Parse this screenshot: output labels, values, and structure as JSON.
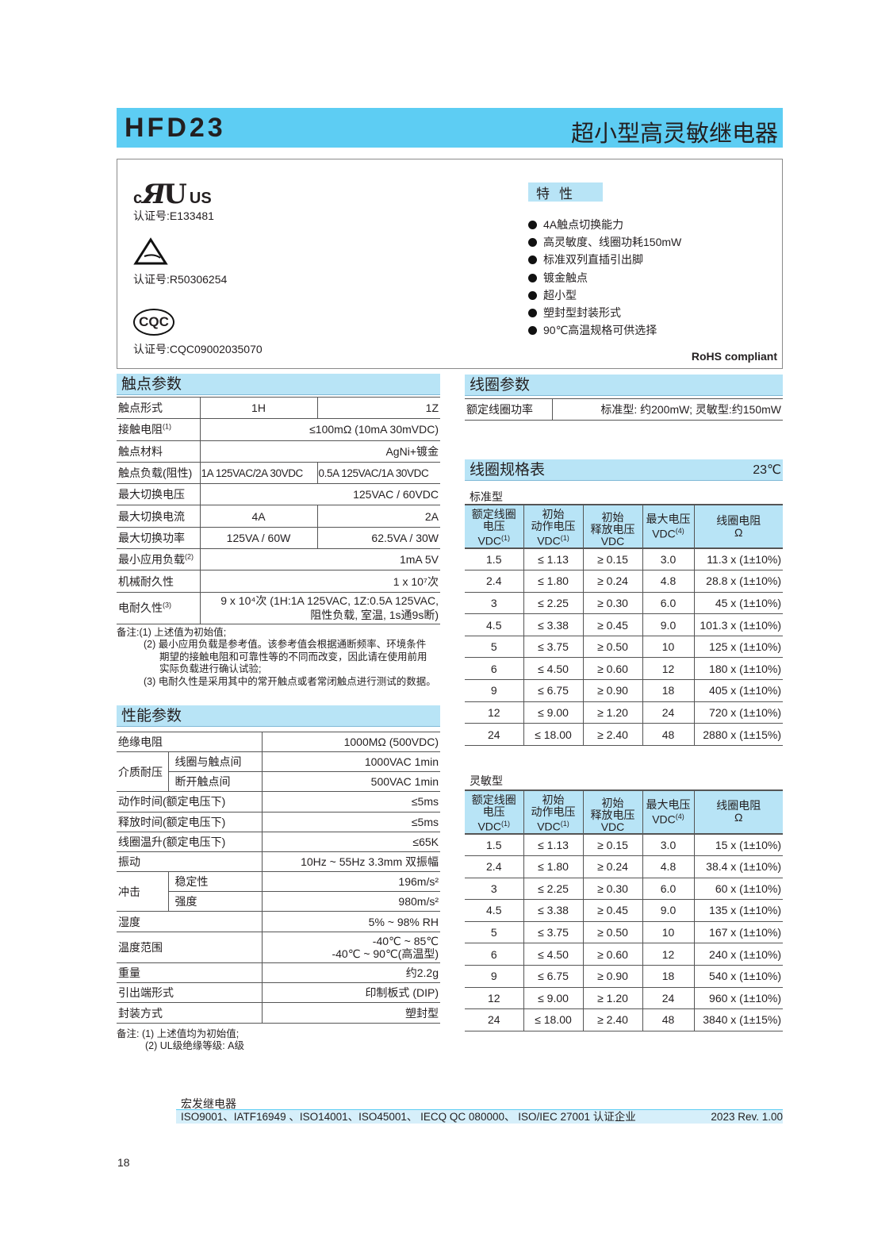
{
  "header": {
    "model": "HFD23",
    "title": "超小型高灵敏继电器"
  },
  "certs": {
    "ul_logo": "c UL us",
    "ul_no": "认证号:E133481",
    "tuv_no": "认证号:R50306254",
    "cqc_logo": "CQC",
    "cqc_no": "认证号:CQC09002035070"
  },
  "features": {
    "title": "特性",
    "items": [
      "4A触点切换能力",
      "高灵敏度、线圈功耗150mW",
      "标准双列直插引出脚",
      "镀金触点",
      "超小型",
      "塑封型封装形式",
      "90℃高温规格可供选择"
    ],
    "rohs": "RoHS compliant"
  },
  "contact": {
    "title": "触点参数",
    "rows": [
      {
        "label": "触点形式",
        "values": [
          "1H",
          "1Z"
        ]
      },
      {
        "label": "接触电阻",
        "sup": "(1)",
        "values": [
          "≤100mΩ (10mA  30mVDC)"
        ]
      },
      {
        "label": "触点材料",
        "values": [
          "AgNi+镀金"
        ]
      },
      {
        "label": "触点负载(阻性)",
        "values": [
          "1A 125VAC/2A 30VDC",
          "0.5A 125VAC/1A 30VDC"
        ]
      },
      {
        "label": "最大切换电压",
        "values": [
          "125VAC / 60VDC"
        ]
      },
      {
        "label": "最大切换电流",
        "values": [
          "4A",
          "2A"
        ]
      },
      {
        "label": "最大切换功率",
        "values": [
          "125VA / 60W",
          "62.5VA / 30W"
        ]
      },
      {
        "label": "最小应用负载",
        "sup": "(2)",
        "values": [
          "1mA  5V"
        ]
      },
      {
        "label": "机械耐久性",
        "values": [
          "1 x 10⁷次"
        ]
      },
      {
        "label": "电耐久性",
        "sup": "(3)",
        "values": [
          "9 x 10⁴次 (1H:1A 125VAC, 1Z:0.5A 125VAC,\n阻性负载, 室温, 1s通9s断)"
        ]
      }
    ],
    "notes": [
      "备注:(1) 上述值为初始值;",
      "(2) 最小应用负载是参考值。该参考值会根据通断频率、环境条件",
      "期望的接触电阻和可靠性等的不同而改变，因此请在使用前用",
      "实际负载进行确认试验;",
      "(3) 电耐久性是采用其中的常开触点或者常闭触点进行测试的数据。"
    ]
  },
  "performance": {
    "title": "性能参数",
    "rows": [
      {
        "label": "绝缘电阻",
        "value": "1000MΩ (500VDC)"
      },
      {
        "label": "介质耐压",
        "sub": [
          {
            "label": "线圈与触点间",
            "value": "1000VAC  1min"
          },
          {
            "label": "断开触点间",
            "value": "500VAC  1min"
          }
        ]
      },
      {
        "label": "动作时间(额定电压下)",
        "value": "≤5ms"
      },
      {
        "label": "释放时间(额定电压下)",
        "value": "≤5ms"
      },
      {
        "label": "线圈温升(额定电压下)",
        "value": "≤65K"
      },
      {
        "label": "振动",
        "value": "10Hz ~ 55Hz  3.3mm 双振幅"
      },
      {
        "label": "冲击",
        "sub": [
          {
            "label": "稳定性",
            "value": "196m/s²"
          },
          {
            "label": "强度",
            "value": "980m/s²"
          }
        ]
      },
      {
        "label": "湿度",
        "value": "5% ~ 98% RH"
      },
      {
        "label": "温度范围",
        "value": "-40℃ ~ 85℃\n-40℃ ~ 90℃(高温型)"
      },
      {
        "label": "重量",
        "value": "约2.2g"
      },
      {
        "label": "引出端形式",
        "value": "印制板式 (DIP)"
      },
      {
        "label": "封装方式",
        "value": "塑封型"
      }
    ],
    "notes": [
      "备注: (1) 上述值均为初始值;",
      "(2) UL级绝缘等级: A级"
    ]
  },
  "coil": {
    "title": "线圈参数",
    "label": "额定线圈功率",
    "value": "标准型: 约200mW;  灵敏型:约150mW"
  },
  "coil_spec": {
    "title": "线圈规格表",
    "temp": "23℃",
    "headers": [
      [
        "额定线圈",
        "电压",
        "VDC",
        "(1)"
      ],
      [
        "初始",
        "动作电压",
        "VDC",
        "(1)"
      ],
      [
        "初始",
        "释放电压",
        "VDC",
        ""
      ],
      [
        "最大电压",
        "VDC",
        "(4)"
      ],
      [
        "线圈电阻",
        "Ω"
      ]
    ],
    "standard": {
      "label": "标准型",
      "rows": [
        [
          "1.5",
          "≤ 1.13",
          "≥ 0.15",
          "3.0",
          "11.3 x (1±10%)"
        ],
        [
          "2.4",
          "≤ 1.80",
          "≥ 0.24",
          "4.8",
          "28.8 x (1±10%)"
        ],
        [
          "3",
          "≤ 2.25",
          "≥ 0.30",
          "6.0",
          "45 x (1±10%)"
        ],
        [
          "4.5",
          "≤ 3.38",
          "≥ 0.45",
          "9.0",
          "101.3 x (1±10%)"
        ],
        [
          "5",
          "≤ 3.75",
          "≥ 0.50",
          "10",
          "125 x (1±10%)"
        ],
        [
          "6",
          "≤ 4.50",
          "≥ 0.60",
          "12",
          "180 x (1±10%)"
        ],
        [
          "9",
          "≤ 6.75",
          "≥ 0.90",
          "18",
          "405 x (1±10%)"
        ],
        [
          "12",
          "≤ 9.00",
          "≥ 1.20",
          "24",
          "720 x (1±10%)"
        ],
        [
          "24",
          "≤ 18.00",
          "≥ 2.40",
          "48",
          "2880 x (1±15%)"
        ]
      ]
    },
    "sensitive": {
      "label": "灵敏型",
      "rows": [
        [
          "1.5",
          "≤ 1.13",
          "≥ 0.15",
          "3.0",
          "15 x (1±10%)"
        ],
        [
          "2.4",
          "≤ 1.80",
          "≥ 0.24",
          "4.8",
          "38.4 x (1±10%)"
        ],
        [
          "3",
          "≤ 2.25",
          "≥ 0.30",
          "6.0",
          "60 x (1±10%)"
        ],
        [
          "4.5",
          "≤ 3.38",
          "≥ 0.45",
          "9.0",
          "135 x (1±10%)"
        ],
        [
          "5",
          "≤ 3.75",
          "≥ 0.50",
          "10",
          "167 x (1±10%)"
        ],
        [
          "6",
          "≤ 4.50",
          "≥ 0.60",
          "12",
          "240 x (1±10%)"
        ],
        [
          "9",
          "≤ 6.75",
          "≥ 0.90",
          "18",
          "540 x (1±10%)"
        ],
        [
          "12",
          "≤ 9.00",
          "≥ 1.20",
          "24",
          "960 x (1±10%)"
        ],
        [
          "24",
          "≤ 18.00",
          "≥ 2.40",
          "48",
          "3840 x (1±15%)"
        ]
      ]
    }
  },
  "footer": {
    "company": "宏发继电器",
    "certs": "ISO9001、IATF16949 、ISO14001、ISO45001、 IECQ QC 080000、 ISO/IEC 27001 认证企业",
    "rev": "2023  Rev. 1.00",
    "page": "18"
  },
  "colors": {
    "header": "#5dcdf3",
    "section": "#b8e4f6"
  }
}
